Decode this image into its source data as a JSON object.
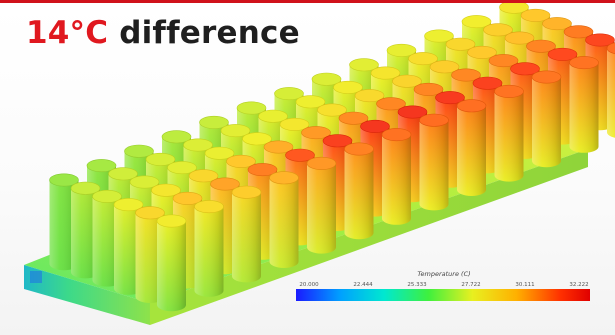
{
  "headline": {
    "value": "14°C",
    "word": "difference"
  },
  "legend": {
    "title": "Temperature (C)",
    "ticks": [
      "20.000",
      "22.444",
      "25.333",
      "27.722",
      "30.111",
      "32.222"
    ],
    "colors": [
      "#1a1aff",
      "#00a0ff",
      "#00e8d0",
      "#3ef03e",
      "#e8f020",
      "#ffb000",
      "#ff3000",
      "#e00000"
    ]
  },
  "colors": {
    "headline_accent": "#e0181f",
    "frame_top": "#d0121b"
  }
}
